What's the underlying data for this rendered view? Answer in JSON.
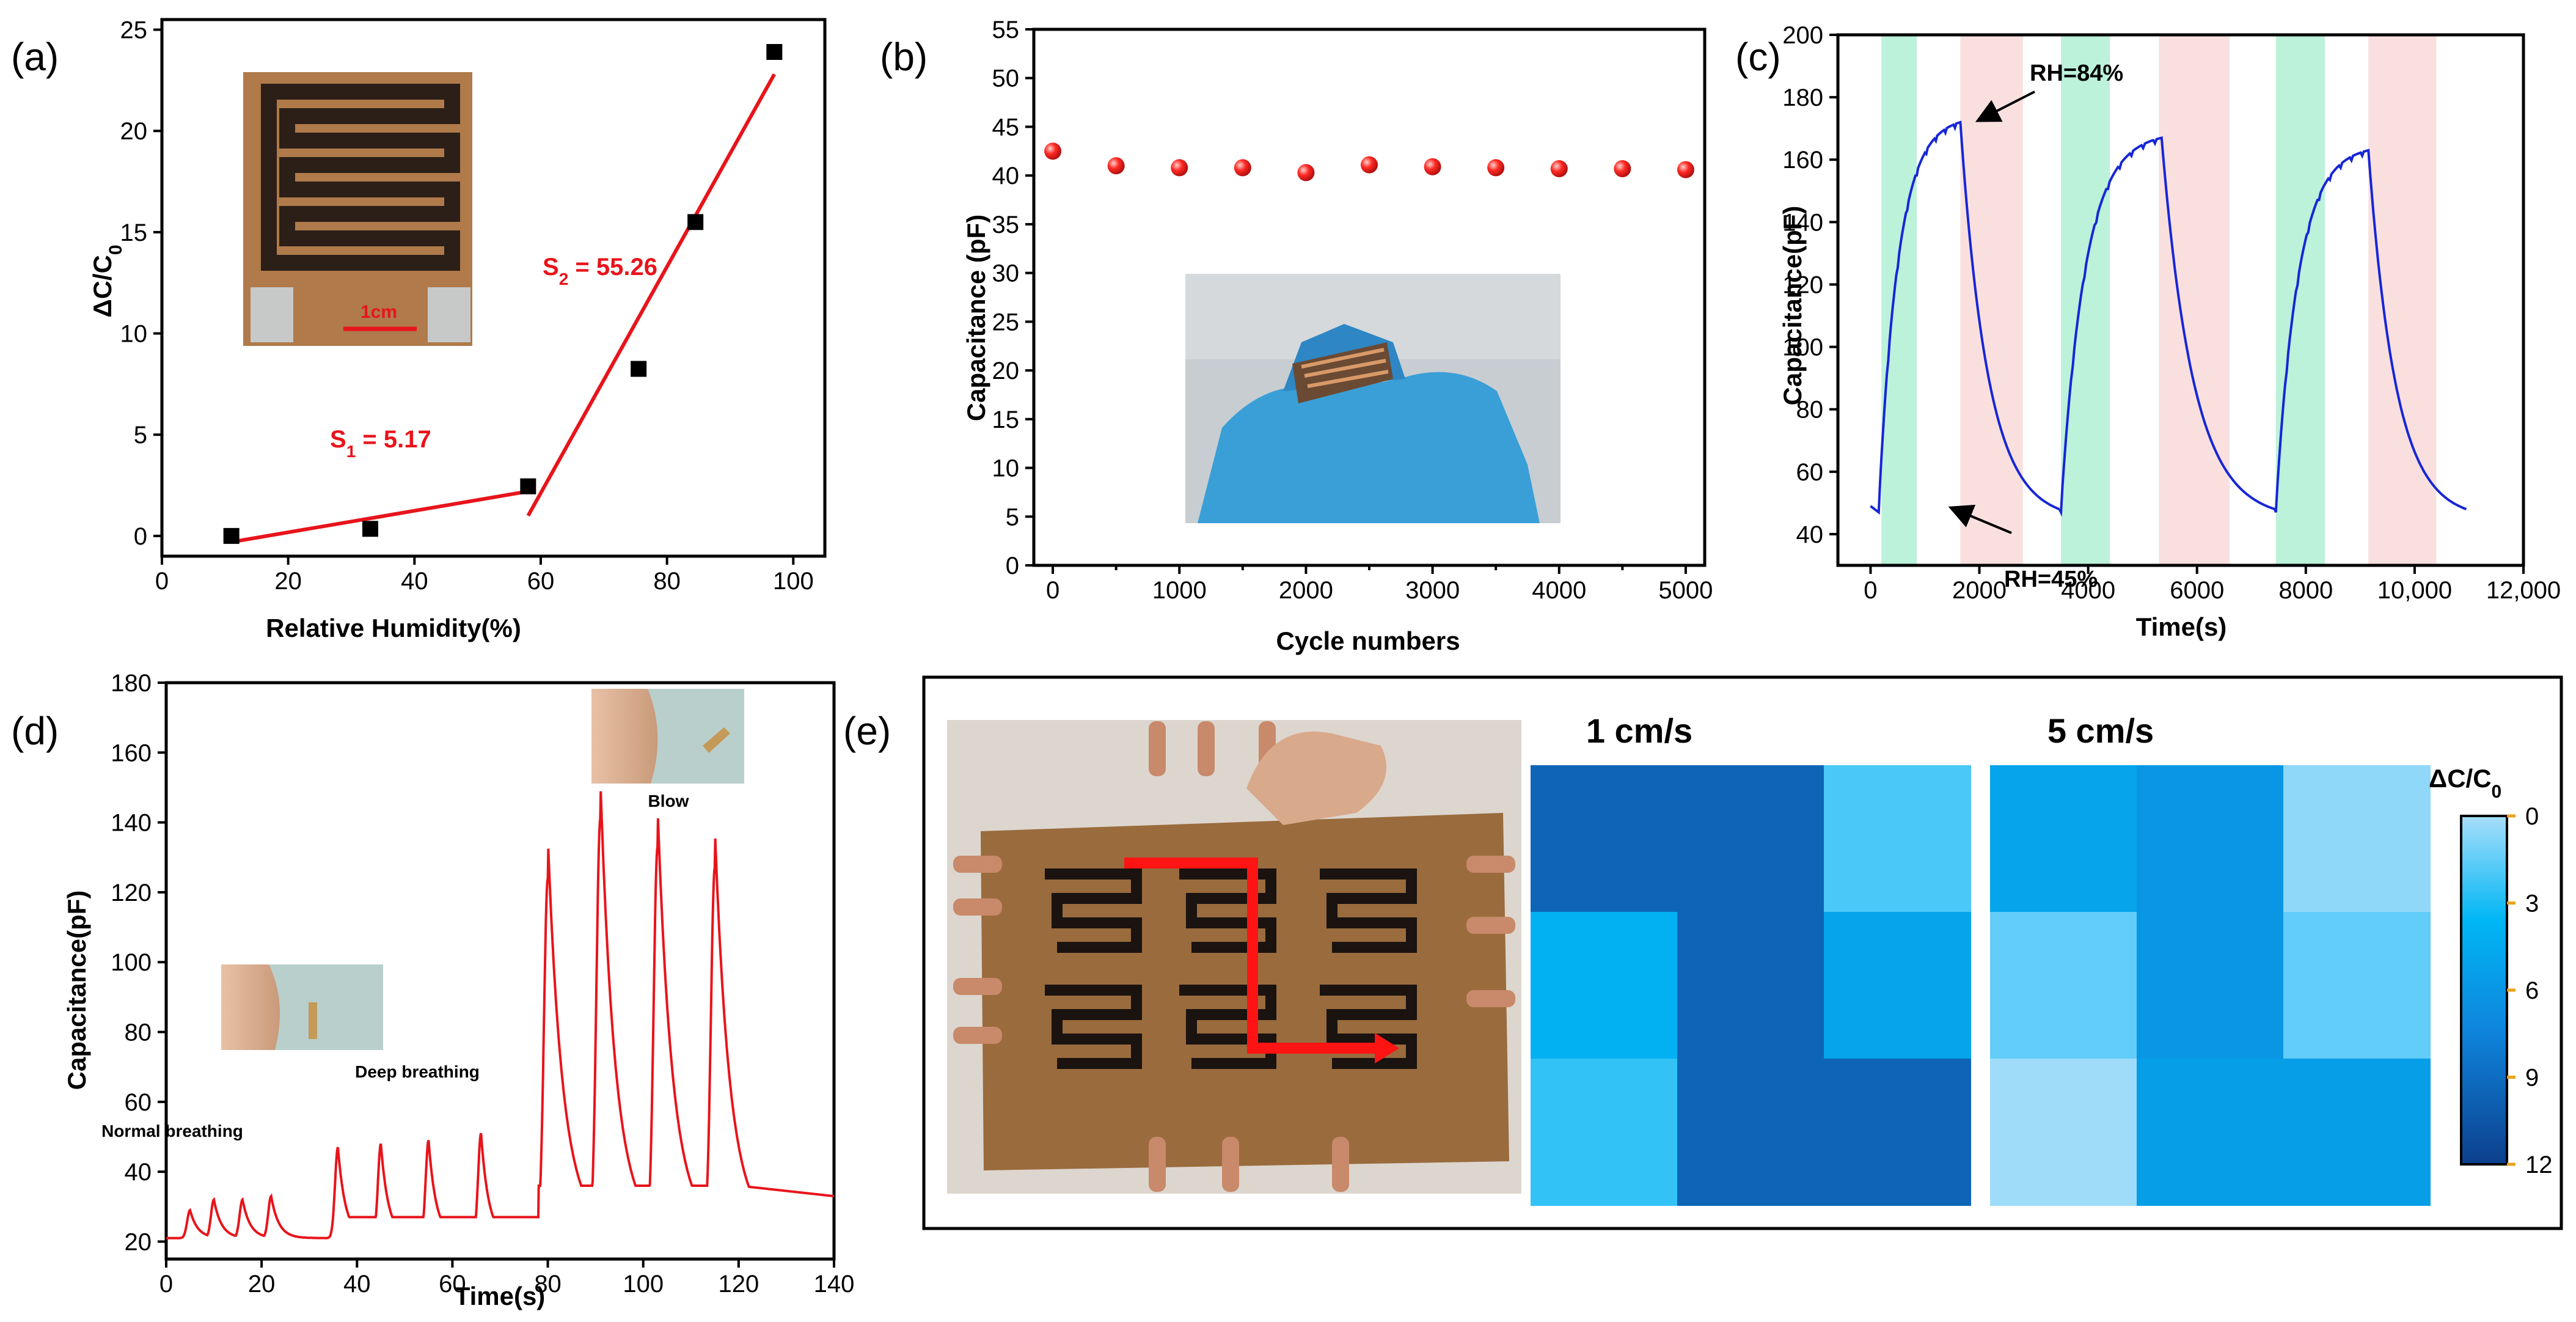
{
  "colors": {
    "red": "#e8141b",
    "blue": "#1726d6",
    "green_band": "#a6ecce",
    "pink_band": "#f7d6d4"
  },
  "chart_data": [
    {
      "id": "a",
      "type": "scatter",
      "panel_label": "(a)",
      "xlabel": "Relative Humidity(%)",
      "ylabel_main": "ΔC/C",
      "ylabel_sub": "0",
      "xlim": [
        0,
        105
      ],
      "ylim": [
        -1,
        25.5
      ],
      "xticks": [
        0,
        20,
        40,
        60,
        80,
        100
      ],
      "yticks": [
        0,
        5,
        10,
        15,
        20,
        25
      ],
      "points": [
        [
          11,
          0.0
        ],
        [
          33,
          0.35
        ],
        [
          58,
          2.45
        ],
        [
          75.5,
          8.25
        ],
        [
          84.5,
          15.5
        ],
        [
          97,
          23.9
        ]
      ],
      "fit_lines": [
        {
          "x": [
            11,
            58
          ],
          "y": [
            -0.3,
            2.2
          ],
          "label_main": "S",
          "label_sub": "1",
          "label_rest": " = 5.17"
        },
        {
          "x": [
            58,
            97
          ],
          "y": [
            1.0,
            22.8
          ],
          "label_main": "S",
          "label_sub": "2",
          "label_rest": " = 55.26"
        }
      ],
      "inset_text": "1cm"
    },
    {
      "id": "b",
      "type": "scatter",
      "panel_label": "(b)",
      "xlabel": "Cycle numbers",
      "ylabel": "Capacitance (pF)",
      "xlim": [
        -150,
        5150
      ],
      "ylim": [
        0,
        55
      ],
      "xticks": [
        0,
        1000,
        2000,
        3000,
        4000,
        5000
      ],
      "xticks_minor": [
        500,
        1500,
        2500,
        3500,
        4500
      ],
      "yticks": [
        0,
        5,
        10,
        15,
        20,
        25,
        30,
        35,
        40,
        45,
        50,
        55
      ],
      "x": [
        0,
        500,
        1000,
        1500,
        2000,
        2500,
        3000,
        3500,
        4000,
        4500,
        5000
      ],
      "y": [
        42.5,
        41.0,
        40.8,
        40.8,
        40.3,
        41.1,
        40.9,
        40.8,
        40.7,
        40.7,
        40.6
      ]
    },
    {
      "id": "c",
      "type": "line",
      "panel_label": "(c)",
      "xlabel": "Time(s)",
      "ylabel": "Capacitance(pF)",
      "xlim": [
        -600,
        12000
      ],
      "ylim": [
        30,
        200
      ],
      "xticks": [
        0,
        2000,
        4000,
        6000,
        8000,
        10000,
        12000
      ],
      "xtick_labels": [
        "0",
        "2000",
        "4000",
        "6000",
        "8000",
        "10,000",
        "12,000"
      ],
      "yticks": [
        40,
        60,
        80,
        100,
        120,
        140,
        160,
        180,
        200
      ],
      "green_bands": [
        [
          200,
          850
        ],
        [
          3500,
          4400
        ],
        [
          7450,
          8350
        ]
      ],
      "pink_bands": [
        [
          1650,
          2800
        ],
        [
          5300,
          6600
        ],
        [
          9150,
          10400
        ]
      ],
      "cycles": [
        {
          "start": 0,
          "rise_start": 150,
          "peak_t": 1650,
          "peak_v": 172,
          "end_t": 3470
        },
        {
          "start": 3470,
          "rise_start": 3500,
          "peak_t": 5350,
          "peak_v": 167,
          "end_t": 7430
        },
        {
          "start": 7430,
          "rise_start": 7450,
          "peak_t": 9150,
          "peak_v": 163,
          "end_t": 10950
        }
      ],
      "baseline": 48,
      "annotations": [
        "RH=84%",
        "RH=45%"
      ]
    },
    {
      "id": "d",
      "type": "line",
      "panel_label": "(d)",
      "xlabel": "Time(s)",
      "ylabel": "Capacitance(pF)",
      "xlim": [
        0,
        140
      ],
      "ylim": [
        15,
        180
      ],
      "xticks": [
        0,
        20,
        40,
        60,
        80,
        100,
        120,
        140
      ],
      "yticks": [
        20,
        40,
        60,
        80,
        100,
        120,
        140,
        160,
        180
      ],
      "baseline": 21,
      "peaks": [
        {
          "t": 5,
          "v": 29
        },
        {
          "t": 10,
          "v": 32
        },
        {
          "t": 16,
          "v": 32
        },
        {
          "t": 22,
          "v": 33
        },
        {
          "t": 36,
          "v": 47
        },
        {
          "t": 45,
          "v": 48
        },
        {
          "t": 55,
          "v": 49
        },
        {
          "t": 66,
          "v": 51
        },
        {
          "t": 80,
          "v": 124
        },
        {
          "t": 91,
          "v": 141
        },
        {
          "t": 103,
          "v": 133
        },
        {
          "t": 115,
          "v": 127
        }
      ],
      "annotations": [
        "Normal breathing",
        "Deep breathing",
        "Blow"
      ]
    },
    {
      "id": "e",
      "type": "heatmap",
      "panel_label": "(e)",
      "maps": [
        {
          "title": "1 cm/s",
          "values": [
            [
              9.5,
              9.5,
              2.0
            ],
            [
              4.0,
              9.5,
              5.0
            ],
            [
              2.5,
              9.5,
              9.5
            ]
          ]
        },
        {
          "title": "5 cm/s",
          "values": [
            [
              5.0,
              6.0,
              0.5
            ],
            [
              1.5,
              6.0,
              1.5
            ],
            [
              0.2,
              5.5,
              5.5
            ]
          ]
        }
      ],
      "colorbar": {
        "label_main": "ΔC/C",
        "label_sub": "0",
        "ticks": [
          0,
          3,
          6,
          9,
          12
        ],
        "range": [
          0,
          12
        ]
      }
    }
  ]
}
